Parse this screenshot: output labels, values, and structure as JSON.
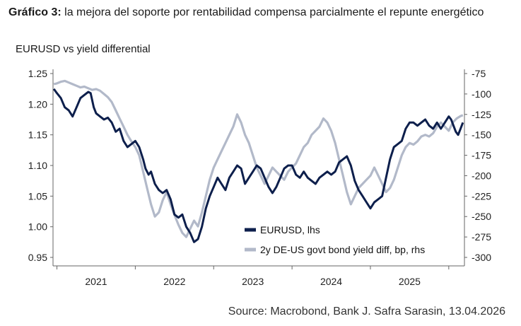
{
  "caption": {
    "prefix": "Gráfico 3:",
    "text": " la mejora del soporte por rentabilidad compensa parcialmente el repunte energético"
  },
  "source": "Source: Macrobond, Bank J. Safra Sarasin, 13.04.2026",
  "colors": {
    "eurusd": "#0d1f4c",
    "spread": "#b2b9c9",
    "axis": "#666666"
  },
  "chart_data": {
    "type": "line",
    "title": "EURUSD vs yield differential",
    "x_ticks": [
      "2021",
      "2022",
      "2023",
      "2024",
      "2025"
    ],
    "xlim": [
      2020.95,
      2026.2
    ],
    "ylim_left": [
      0.95,
      1.25
    ],
    "ylim_right": [
      -300,
      -75
    ],
    "y_ticks_left": [
      "1.25",
      "1.20",
      "1.15",
      "1.10",
      "1.05",
      "1.00",
      "0.95"
    ],
    "y_ticks_right": [
      "-75",
      "-100",
      "-125",
      "-150",
      "-175",
      "-200",
      "-225",
      "-250",
      "-275",
      "-300"
    ],
    "legend_position": "bottom-right",
    "series": [
      {
        "name": "EURUSD, lhs",
        "axis": "left",
        "points": [
          [
            2020.96,
            1.225
          ],
          [
            2021.0,
            1.218
          ],
          [
            2021.05,
            1.21
          ],
          [
            2021.1,
            1.195
          ],
          [
            2021.15,
            1.19
          ],
          [
            2021.2,
            1.18
          ],
          [
            2021.25,
            1.195
          ],
          [
            2021.3,
            1.21
          ],
          [
            2021.35,
            1.215
          ],
          [
            2021.4,
            1.22
          ],
          [
            2021.43,
            1.218
          ],
          [
            2021.47,
            1.195
          ],
          [
            2021.5,
            1.185
          ],
          [
            2021.55,
            1.18
          ],
          [
            2021.6,
            1.175
          ],
          [
            2021.65,
            1.178
          ],
          [
            2021.7,
            1.17
          ],
          [
            2021.75,
            1.155
          ],
          [
            2021.8,
            1.16
          ],
          [
            2021.85,
            1.14
          ],
          [
            2021.9,
            1.13
          ],
          [
            2021.95,
            1.135
          ],
          [
            2022.0,
            1.14
          ],
          [
            2022.05,
            1.13
          ],
          [
            2022.1,
            1.11
          ],
          [
            2022.13,
            1.095
          ],
          [
            2022.17,
            1.085
          ],
          [
            2022.2,
            1.09
          ],
          [
            2022.25,
            1.07
          ],
          [
            2022.3,
            1.06
          ],
          [
            2022.35,
            1.055
          ],
          [
            2022.4,
            1.06
          ],
          [
            2022.45,
            1.045
          ],
          [
            2022.5,
            1.02
          ],
          [
            2022.55,
            1.015
          ],
          [
            2022.6,
            1.02
          ],
          [
            2022.65,
            1.0
          ],
          [
            2022.7,
            0.99
          ],
          [
            2022.75,
            0.975
          ],
          [
            2022.8,
            0.98
          ],
          [
            2022.85,
            1.0
          ],
          [
            2022.9,
            1.03
          ],
          [
            2022.95,
            1.05
          ],
          [
            2023.0,
            1.065
          ],
          [
            2023.05,
            1.08
          ],
          [
            2023.1,
            1.07
          ],
          [
            2023.15,
            1.06
          ],
          [
            2023.2,
            1.08
          ],
          [
            2023.25,
            1.09
          ],
          [
            2023.3,
            1.1
          ],
          [
            2023.35,
            1.095
          ],
          [
            2023.4,
            1.07
          ],
          [
            2023.45,
            1.08
          ],
          [
            2023.5,
            1.09
          ],
          [
            2023.55,
            1.1
          ],
          [
            2023.6,
            1.095
          ],
          [
            2023.65,
            1.08
          ],
          [
            2023.7,
            1.065
          ],
          [
            2023.75,
            1.055
          ],
          [
            2023.8,
            1.065
          ],
          [
            2023.85,
            1.08
          ],
          [
            2023.9,
            1.095
          ],
          [
            2023.95,
            1.1
          ],
          [
            2024.0,
            1.1
          ],
          [
            2024.05,
            1.085
          ],
          [
            2024.1,
            1.08
          ],
          [
            2024.15,
            1.09
          ],
          [
            2024.2,
            1.08
          ],
          [
            2024.25,
            1.075
          ],
          [
            2024.3,
            1.07
          ],
          [
            2024.35,
            1.08
          ],
          [
            2024.4,
            1.085
          ],
          [
            2024.45,
            1.09
          ],
          [
            2024.5,
            1.085
          ],
          [
            2024.55,
            1.09
          ],
          [
            2024.6,
            1.105
          ],
          [
            2024.65,
            1.11
          ],
          [
            2024.7,
            1.115
          ],
          [
            2024.75,
            1.1
          ],
          [
            2024.8,
            1.075
          ],
          [
            2024.85,
            1.06
          ],
          [
            2024.9,
            1.05
          ],
          [
            2024.95,
            1.04
          ],
          [
            2025.0,
            1.03
          ],
          [
            2025.05,
            1.04
          ],
          [
            2025.1,
            1.045
          ],
          [
            2025.15,
            1.05
          ],
          [
            2025.2,
            1.08
          ],
          [
            2025.25,
            1.11
          ],
          [
            2025.3,
            1.13
          ],
          [
            2025.35,
            1.135
          ],
          [
            2025.4,
            1.14
          ],
          [
            2025.45,
            1.16
          ],
          [
            2025.5,
            1.17
          ],
          [
            2025.55,
            1.17
          ],
          [
            2025.6,
            1.165
          ],
          [
            2025.65,
            1.17
          ],
          [
            2025.7,
            1.175
          ],
          [
            2025.75,
            1.165
          ],
          [
            2025.8,
            1.16
          ],
          [
            2025.85,
            1.17
          ],
          [
            2025.9,
            1.16
          ],
          [
            2025.95,
            1.17
          ],
          [
            2026.0,
            1.18
          ],
          [
            2026.03,
            1.175
          ],
          [
            2026.06,
            1.165
          ],
          [
            2026.09,
            1.155
          ],
          [
            2026.12,
            1.15
          ],
          [
            2026.15,
            1.16
          ],
          [
            2026.18,
            1.17
          ]
        ]
      },
      {
        "name": "2y DE-US govt bond yield diff, bp, rhs",
        "axis": "right",
        "points": [
          [
            2020.96,
            -88
          ],
          [
            2021.0,
            -87
          ],
          [
            2021.05,
            -85
          ],
          [
            2021.1,
            -84
          ],
          [
            2021.15,
            -86
          ],
          [
            2021.2,
            -88
          ],
          [
            2021.25,
            -90
          ],
          [
            2021.3,
            -92
          ],
          [
            2021.35,
            -91
          ],
          [
            2021.4,
            -93
          ],
          [
            2021.45,
            -95
          ],
          [
            2021.5,
            -94
          ],
          [
            2021.55,
            -96
          ],
          [
            2021.6,
            -100
          ],
          [
            2021.65,
            -104
          ],
          [
            2021.7,
            -110
          ],
          [
            2021.75,
            -120
          ],
          [
            2021.8,
            -130
          ],
          [
            2021.85,
            -140
          ],
          [
            2021.9,
            -150
          ],
          [
            2021.95,
            -158
          ],
          [
            2022.0,
            -165
          ],
          [
            2022.05,
            -175
          ],
          [
            2022.1,
            -195
          ],
          [
            2022.15,
            -215
          ],
          [
            2022.2,
            -235
          ],
          [
            2022.25,
            -250
          ],
          [
            2022.3,
            -245
          ],
          [
            2022.35,
            -230
          ],
          [
            2022.4,
            -220
          ],
          [
            2022.45,
            -235
          ],
          [
            2022.5,
            -248
          ],
          [
            2022.55,
            -260
          ],
          [
            2022.6,
            -270
          ],
          [
            2022.65,
            -275
          ],
          [
            2022.7,
            -265
          ],
          [
            2022.75,
            -255
          ],
          [
            2022.8,
            -262
          ],
          [
            2022.85,
            -245
          ],
          [
            2022.9,
            -225
          ],
          [
            2022.95,
            -205
          ],
          [
            2023.0,
            -190
          ],
          [
            2023.05,
            -180
          ],
          [
            2023.1,
            -170
          ],
          [
            2023.15,
            -160
          ],
          [
            2023.2,
            -150
          ],
          [
            2023.25,
            -140
          ],
          [
            2023.3,
            -125
          ],
          [
            2023.35,
            -135
          ],
          [
            2023.4,
            -150
          ],
          [
            2023.45,
            -160
          ],
          [
            2023.5,
            -175
          ],
          [
            2023.55,
            -190
          ],
          [
            2023.6,
            -200
          ],
          [
            2023.65,
            -210
          ],
          [
            2023.7,
            -200
          ],
          [
            2023.75,
            -190
          ],
          [
            2023.8,
            -195
          ],
          [
            2023.85,
            -200
          ],
          [
            2023.9,
            -205
          ],
          [
            2023.95,
            -195
          ],
          [
            2024.0,
            -190
          ],
          [
            2024.05,
            -185
          ],
          [
            2024.1,
            -175
          ],
          [
            2024.15,
            -165
          ],
          [
            2024.2,
            -160
          ],
          [
            2024.25,
            -150
          ],
          [
            2024.3,
            -145
          ],
          [
            2024.35,
            -140
          ],
          [
            2024.4,
            -130
          ],
          [
            2024.45,
            -135
          ],
          [
            2024.5,
            -145
          ],
          [
            2024.55,
            -160
          ],
          [
            2024.6,
            -180
          ],
          [
            2024.65,
            -200
          ],
          [
            2024.7,
            -220
          ],
          [
            2024.75,
            -235
          ],
          [
            2024.8,
            -225
          ],
          [
            2024.85,
            -215
          ],
          [
            2024.9,
            -210
          ],
          [
            2024.95,
            -205
          ],
          [
            2025.0,
            -200
          ],
          [
            2025.05,
            -190
          ],
          [
            2025.1,
            -200
          ],
          [
            2025.15,
            -210
          ],
          [
            2025.2,
            -220
          ],
          [
            2025.25,
            -215
          ],
          [
            2025.3,
            -205
          ],
          [
            2025.35,
            -190
          ],
          [
            2025.4,
            -175
          ],
          [
            2025.45,
            -165
          ],
          [
            2025.5,
            -160
          ],
          [
            2025.55,
            -162
          ],
          [
            2025.6,
            -158
          ],
          [
            2025.65,
            -152
          ],
          [
            2025.7,
            -150
          ],
          [
            2025.75,
            -152
          ],
          [
            2025.8,
            -148
          ],
          [
            2025.85,
            -140
          ],
          [
            2025.9,
            -135
          ],
          [
            2025.95,
            -140
          ],
          [
            2026.0,
            -145
          ],
          [
            2026.05,
            -135
          ],
          [
            2026.1,
            -130
          ],
          [
            2026.15,
            -127
          ],
          [
            2026.18,
            -126
          ]
        ]
      }
    ]
  }
}
